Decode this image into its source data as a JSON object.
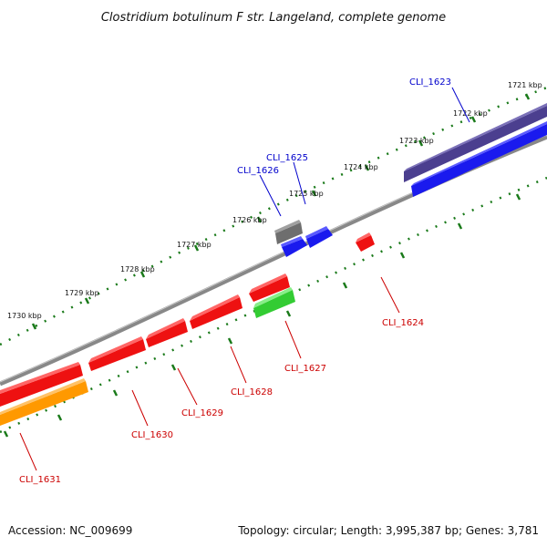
{
  "title": "Clostridium botulinum F str. Langeland, complete genome",
  "footer": {
    "accession": "Accession: NC_009699",
    "topology": "Topology: circular; Length: 3,995,387 bp; Genes: 3,781"
  },
  "kbp_labels": [
    "1721 kbp",
    "1722 kbp",
    "1723 kbp",
    "1724 kbp",
    "1725 kbp",
    "1726 kbp",
    "1727 kbp",
    "1728 kbp",
    "1729 kbp",
    "1730 kbp"
  ],
  "genes": [
    {
      "label": "CLI_1623",
      "color": "#0000cc"
    },
    {
      "label": "CLI_1625",
      "color": "#0000cc"
    },
    {
      "label": "CLI_1626",
      "color": "#0000cc"
    },
    {
      "label": "CLI_1624",
      "color": "#cc0000"
    },
    {
      "label": "CLI_1627",
      "color": "#cc0000"
    },
    {
      "label": "CLI_1628",
      "color": "#cc0000"
    },
    {
      "label": "CLI_1629",
      "color": "#cc0000"
    },
    {
      "label": "CLI_1630",
      "color": "#cc0000"
    },
    {
      "label": "CLI_1631",
      "color": "#cc0000"
    }
  ],
  "colors": {
    "backbone": "#888888",
    "tick": "#1a7a1a",
    "forward_gene": "#1a1aee",
    "reverse_gene": "#ee1111",
    "highlight_purple": "#4b3f8f",
    "gray_feature": "#6e6e6e",
    "green_feature": "#33cc33",
    "orange_feature": "#ff9900"
  }
}
